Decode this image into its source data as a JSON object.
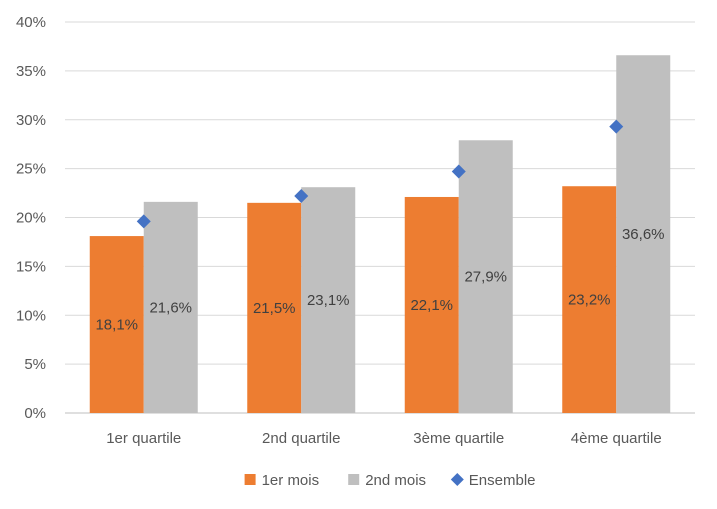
{
  "chart_data": {
    "type": "bar",
    "categories": [
      "1er quartile",
      "2nd quartile",
      "3ème quartile",
      "4ème quartile"
    ],
    "series": [
      {
        "name": "1er mois",
        "kind": "bar",
        "color": "#ED7D31",
        "values": [
          18.1,
          21.5,
          22.1,
          23.2
        ],
        "labels": [
          "18,1%",
          "21,5%",
          "22,1%",
          "23,2%"
        ]
      },
      {
        "name": "2nd mois",
        "kind": "bar",
        "color": "#BFBFBF",
        "values": [
          21.6,
          23.1,
          27.9,
          36.6
        ],
        "labels": [
          "21,6%",
          "23,1%",
          "27,9%",
          "36,6%"
        ]
      },
      {
        "name": "Ensemble",
        "kind": "marker",
        "marker": "diamond",
        "color": "#4472C4",
        "values": [
          19.6,
          22.2,
          24.7,
          29.3
        ]
      }
    ],
    "yticks": [
      "0%",
      "5%",
      "10%",
      "15%",
      "20%",
      "25%",
      "30%",
      "35%",
      "40%"
    ],
    "ylim": [
      0,
      40
    ],
    "grid": true,
    "legend": "bottom-center"
  }
}
